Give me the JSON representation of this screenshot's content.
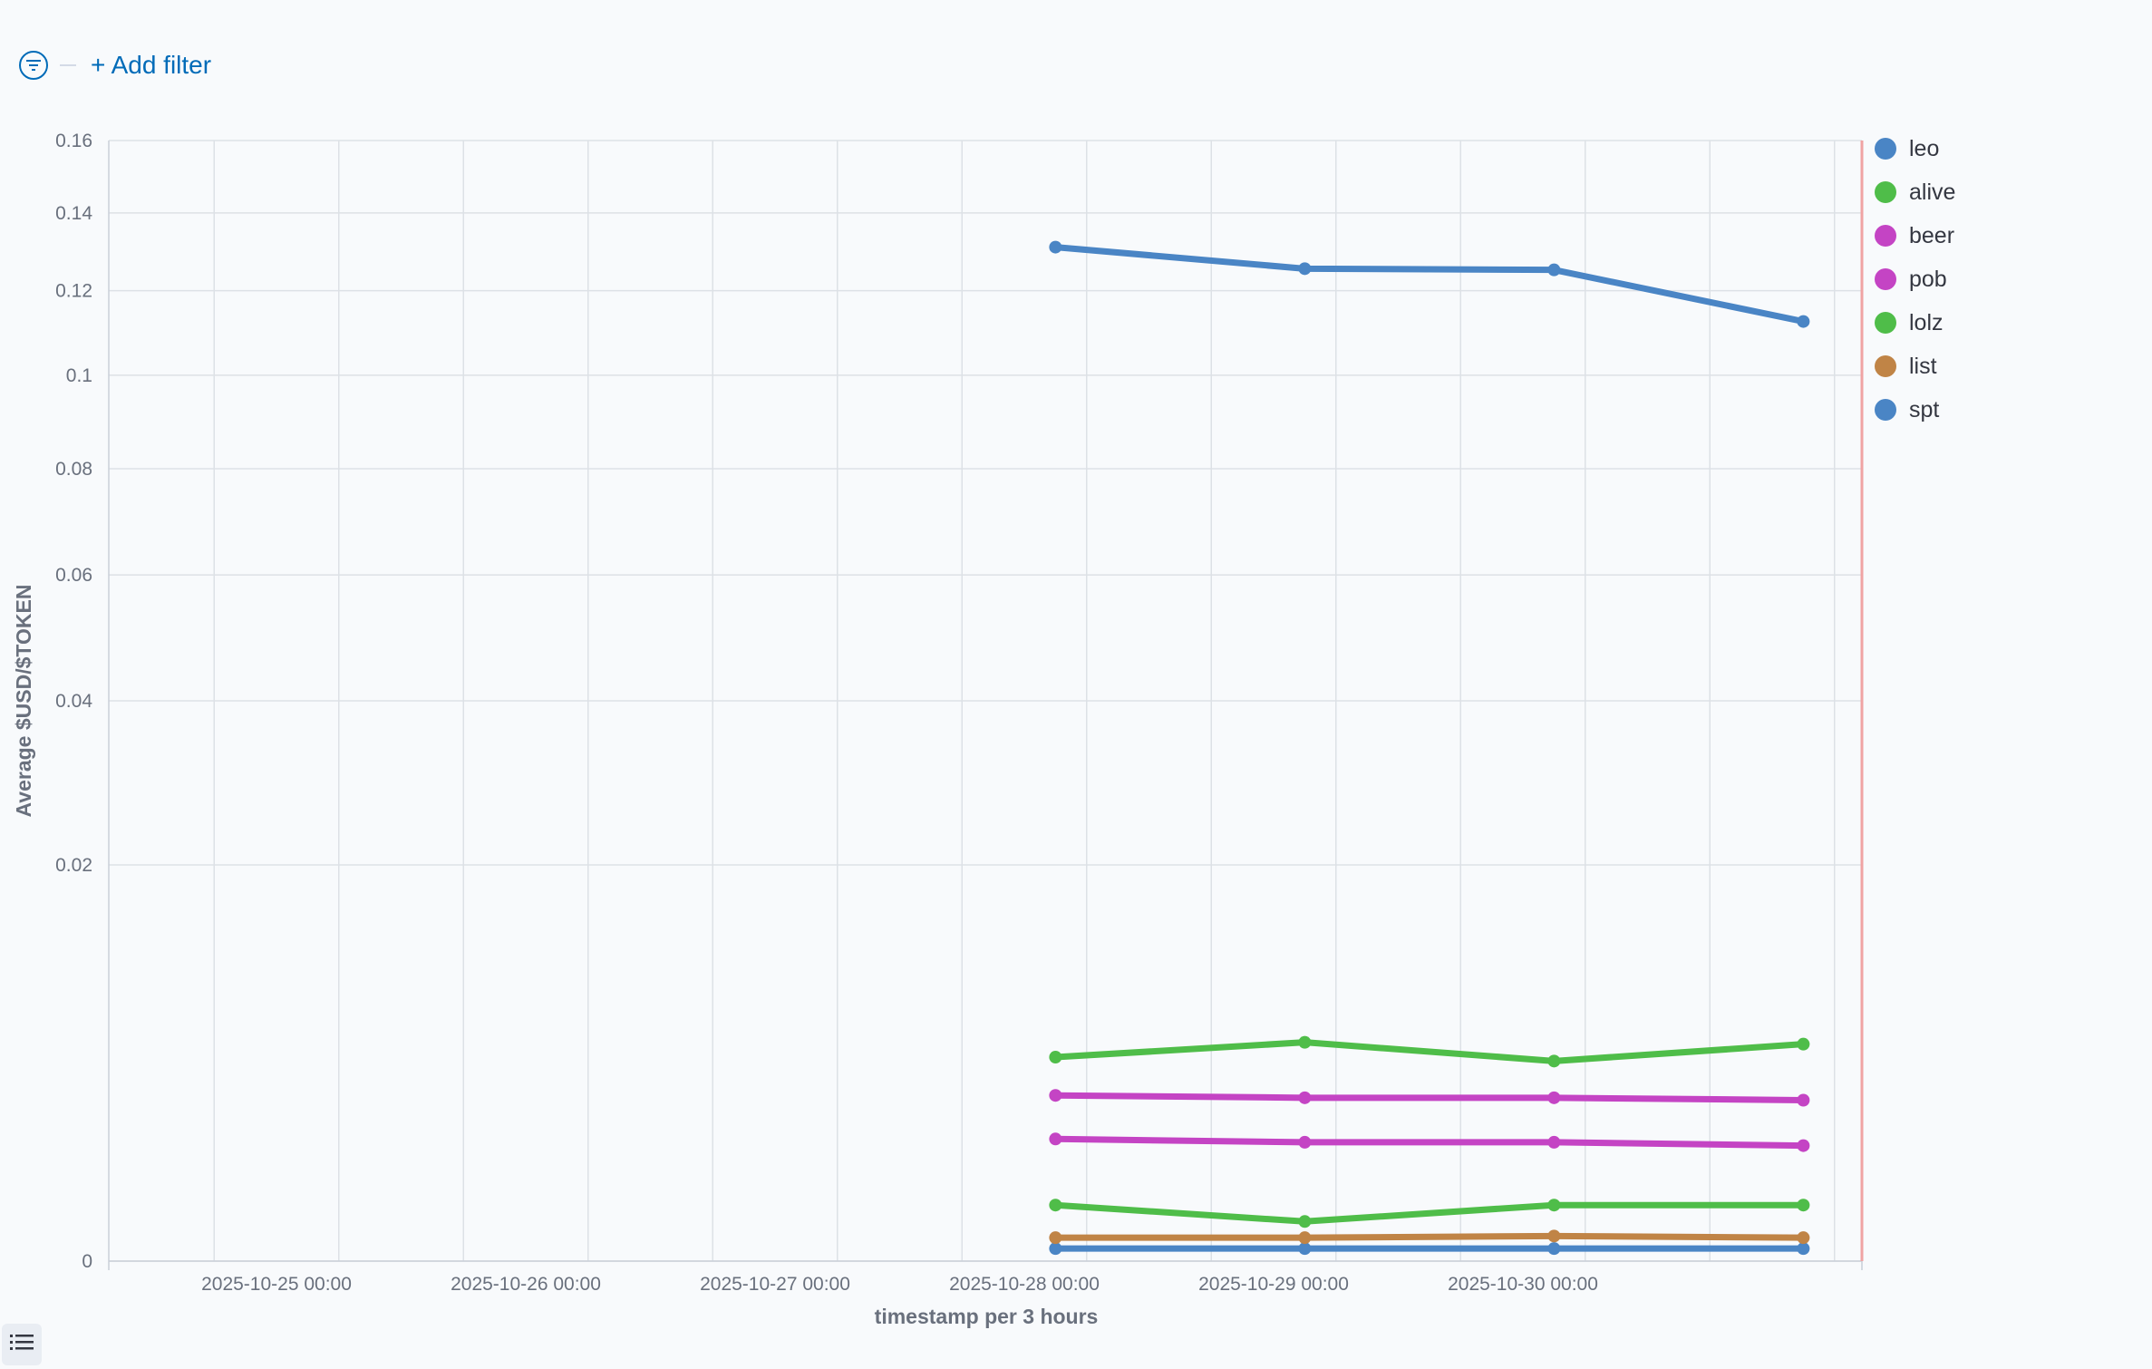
{
  "filter_bar": {
    "add_filter_label": "+ Add filter"
  },
  "chart_data": {
    "type": "line",
    "xlabel": "timestamp per 3 hours",
    "ylabel": "Average $USD/$TOKEN",
    "y_scale": "sqrt",
    "ylim": [
      0,
      0.16
    ],
    "y_ticks": [
      0,
      0.02,
      0.04,
      0.06,
      0.08,
      0.1,
      0.12,
      0.14,
      0.16
    ],
    "y_tick_labels": [
      "0",
      "0.02",
      "0.04",
      "0.06",
      "0.08",
      "0.1",
      "0.12",
      "0.14",
      "0.16"
    ],
    "x_ticks": [
      "2025-10-25 00:00",
      "2025-10-26 00:00",
      "2025-10-27 00:00",
      "2025-10-28 00:00",
      "2025-10-29 00:00",
      "2025-10-30 00:00"
    ],
    "x": [
      "2025-10-28 03:00",
      "2025-10-29 03:00",
      "2025-10-30 03:00",
      "2025-10-31 03:00"
    ],
    "grid": true,
    "legend_position": "right",
    "series": [
      {
        "name": "leo",
        "color": "#4a85c5",
        "values": [
          0.131,
          0.1255,
          0.1252,
          0.1125
        ]
      },
      {
        "name": "alive",
        "color": "#4fbd49",
        "values": [
          0.0053,
          0.0061,
          0.0051,
          0.006
        ]
      },
      {
        "name": "beer",
        "color": "#c444c4",
        "values": [
          0.0035,
          0.0034,
          0.0034,
          0.0033
        ]
      },
      {
        "name": "pob",
        "color": "#c444c4",
        "values": [
          0.0019,
          0.0018,
          0.0018,
          0.0017
        ]
      },
      {
        "name": "lolz",
        "color": "#4fbd49",
        "values": [
          0.0004,
          0.0002,
          0.0004,
          0.0004
        ]
      },
      {
        "name": "list",
        "color": "#c08446",
        "values": [
          7e-05,
          7e-05,
          8e-05,
          7e-05
        ]
      },
      {
        "name": "spt",
        "color": "#4a85c5",
        "values": [
          2e-05,
          2e-05,
          2e-05,
          2e-05
        ]
      }
    ]
  }
}
